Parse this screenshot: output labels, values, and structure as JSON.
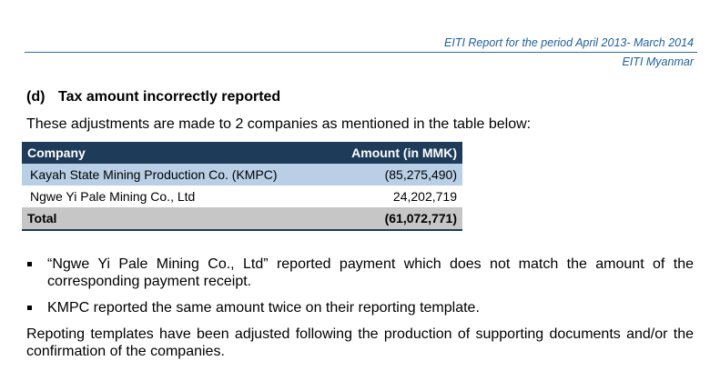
{
  "header": {
    "report_title": "EITI Report for the period April 2013- March 2014",
    "organization": "EITI Myanmar"
  },
  "section": {
    "number": "(d)",
    "title": "Tax amount incorrectly reported",
    "intro": "These adjustments are made to 2 companies as mentioned in the table below:"
  },
  "table": {
    "columns": [
      "Company",
      "Amount (in MMK)"
    ],
    "rows": [
      {
        "company": "Kayah State Mining Production Co. (KMPC)",
        "amount": "(85,275,490)"
      },
      {
        "company": "Ngwe Yi Pale Mining Co., Ltd",
        "amount": "24,202,719"
      }
    ],
    "total": {
      "label": "Total",
      "amount": "(61,072,771)"
    }
  },
  "bullets": [
    "“Ngwe Yi Pale Mining Co., Ltd” reported  payment which does not match  the amount of the corresponding payment receipt.",
    "KMPC reported the same amount twice on their reporting template."
  ],
  "closing": "Repoting templates have been adjusted following the production of supporting documents and/or the confirmation of the companies."
}
